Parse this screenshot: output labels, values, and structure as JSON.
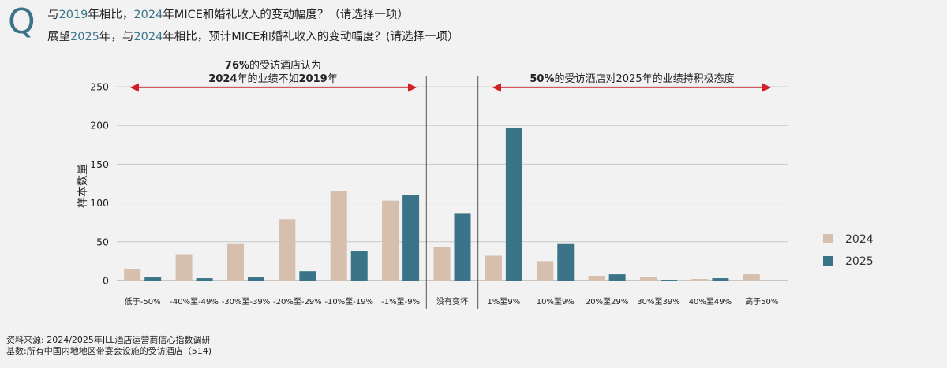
{
  "questions": [
    {
      "q_mark": "Q",
      "parts": [
        {
          "t": "与"
        },
        {
          "t": "2019",
          "y": true
        },
        {
          "t": "年相比，"
        },
        {
          "t": "2024",
          "y": true
        },
        {
          "t": "年MICE和婚礼收入的变动幅度？（请选择一项）"
        }
      ]
    },
    {
      "parts": [
        {
          "t": "展望"
        },
        {
          "t": "2025",
          "y": true
        },
        {
          "t": "年，与"
        },
        {
          "t": "2024",
          "y": true
        },
        {
          "t": "年相比，预计MICE和婚礼收入的变动幅度？(请选择一项）"
        }
      ]
    }
  ],
  "chart_data": {
    "type": "bar",
    "ylabel": "样本数量",
    "ylim": [
      0,
      250
    ],
    "yticks": [
      0,
      50,
      100,
      150,
      200,
      250
    ],
    "grid": true,
    "categories": [
      "低于-50%",
      "-40%至-49%",
      "-30%至-39%",
      "-20%至-29%",
      "-10%至-19%",
      "-1%至-9%",
      "没有变坏",
      "1%至9%",
      "10%至9%",
      "20%至29%",
      "30%至39%",
      "40%至49%",
      "高于50%"
    ],
    "series": [
      {
        "name": "2024",
        "color": "#d6bfad",
        "values": [
          15,
          34,
          47,
          79,
          115,
          103,
          43,
          32,
          25,
          6,
          5,
          2,
          8
        ]
      },
      {
        "name": "2025",
        "color": "#3b7489",
        "values": [
          4,
          3,
          4,
          12,
          38,
          110,
          87,
          197,
          47,
          8,
          1,
          3,
          0
        ]
      }
    ],
    "annotations": [
      {
        "line1_bold": "76%",
        "line1_rest": "的受访酒店认为",
        "line2_bold_a": "2024",
        "line2_mid": "年的业绩不如",
        "line2_bold_b": "2019",
        "line2_end": "年"
      },
      {
        "bold": "50%",
        "rest": "的受访酒店对2025年的业绩持积极态度"
      }
    ],
    "legend_position": "right"
  },
  "legend": [
    {
      "label": "2024",
      "color": "#d6bfad"
    },
    {
      "label": "2025",
      "color": "#3b7489"
    }
  ],
  "source": {
    "line1": "资料来源: 2024/2025年JLL酒店运营商信心指数调研",
    "line2": "基数:所有中国内地地区带宴会设施的受访酒店（514)"
  }
}
